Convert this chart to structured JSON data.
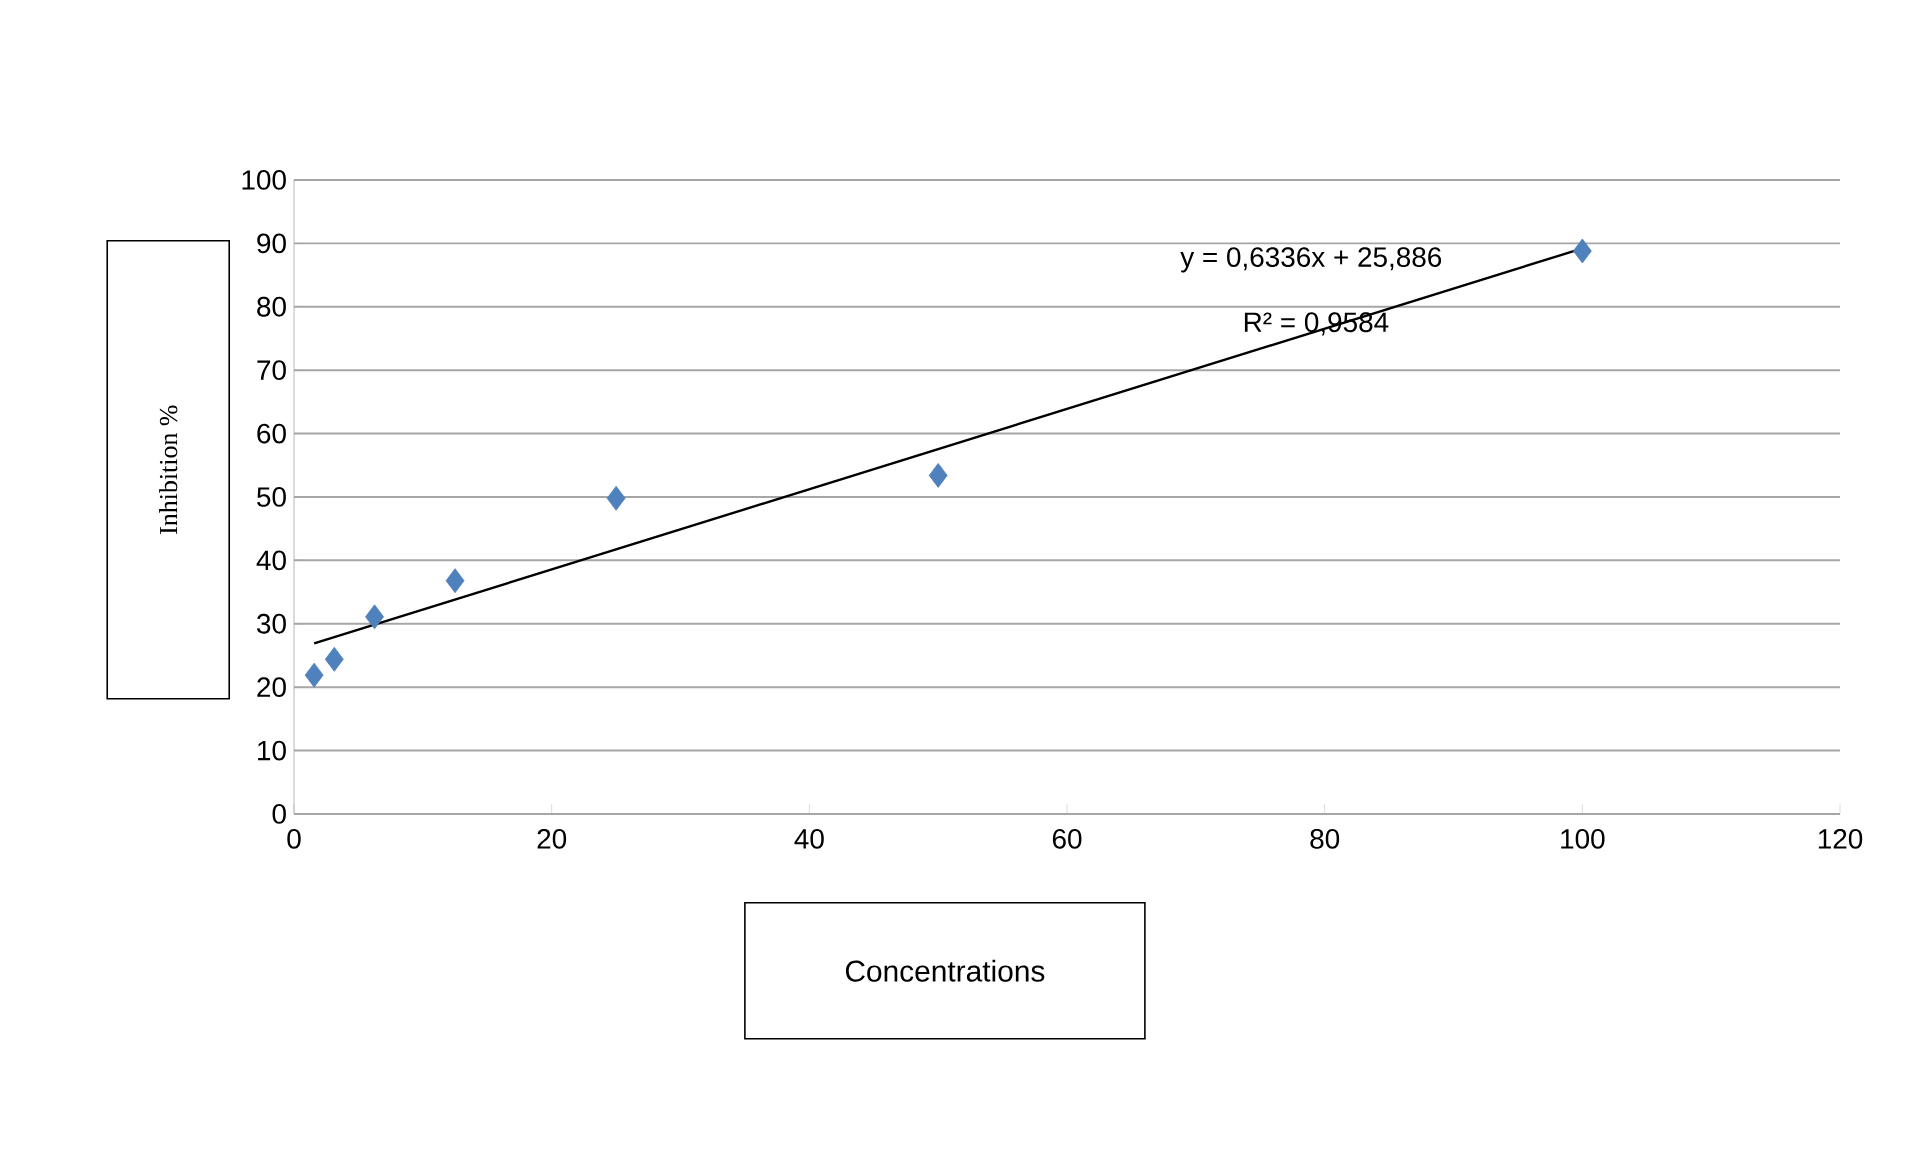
{
  "chart_data": {
    "type": "scatter",
    "xlabel": "Concentrations",
    "ylabel": "Inhibition %",
    "annotations": [
      "y = 0,6336x + 25,886",
      "R² = 0,9584"
    ],
    "series": [
      {
        "color": "#4f81bd",
        "marker": "diamond",
        "x": [
          1.5625,
          3.125,
          6.25,
          12.5,
          25,
          50,
          100
        ],
        "values": [
          21.9,
          24.4,
          31.1,
          36.8,
          49.8,
          53.4,
          88.8
        ]
      },
      {
        "type": "line",
        "color": "#000000",
        "marker": "none",
        "x": [
          1.5625,
          100
        ],
        "values": [
          26.9,
          89.2
        ]
      }
    ],
    "xlim": [
      0,
      120
    ],
    "xticks": [
      0,
      20,
      40,
      60,
      80,
      100,
      120
    ],
    "ylim": [
      0,
      100
    ],
    "yticks": [
      0,
      10,
      20,
      30,
      40,
      50,
      60,
      70,
      80,
      90,
      100
    ],
    "grid": "y",
    "line_style": "solid"
  }
}
